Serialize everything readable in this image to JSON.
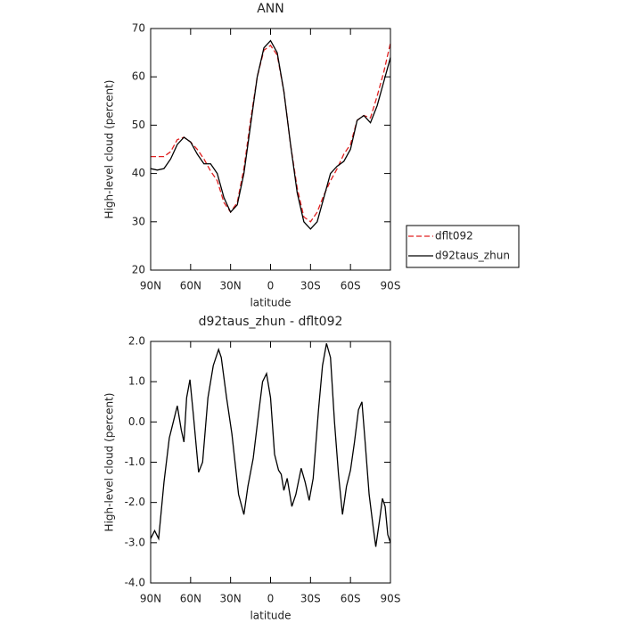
{
  "chart_data": [
    {
      "type": "line",
      "title": "ANN",
      "xlabel": "latitude",
      "ylabel": "High-level cloud (percent)",
      "x": [
        90,
        85,
        80,
        75,
        70,
        65,
        60,
        55,
        50,
        45,
        40,
        35,
        30,
        25,
        20,
        15,
        10,
        5,
        0,
        -5,
        -10,
        -15,
        -20,
        -25,
        -30,
        -35,
        -40,
        -45,
        -50,
        -55,
        -60,
        -65,
        -70,
        -75,
        -80,
        -85,
        -90
      ],
      "series": [
        {
          "name": "dflt092",
          "color": "#e02020",
          "dash": true,
          "values": [
            43.5,
            43.5,
            43.5,
            44.5,
            47,
            47.5,
            46.5,
            45,
            43,
            40.5,
            38.5,
            34,
            32,
            34,
            41,
            51,
            60,
            65.5,
            66.5,
            64.5,
            57,
            46,
            37,
            31,
            30,
            32,
            35.5,
            38.5,
            41,
            44,
            46,
            51,
            52,
            51.5,
            56,
            61,
            67
          ]
        },
        {
          "name": "d92taus_zhun",
          "color": "#000000",
          "dash": false,
          "values": [
            41,
            40.7,
            41,
            43,
            46,
            47.5,
            46.5,
            44,
            42,
            42,
            40,
            35,
            32,
            33.5,
            40,
            50,
            60,
            66,
            67.5,
            65,
            57,
            46,
            36,
            30,
            28.5,
            30,
            35,
            40,
            41.5,
            42.5,
            45,
            51,
            52,
            50.5,
            54,
            59,
            64
          ]
        }
      ],
      "xlim": [
        90,
        -90
      ],
      "xticks": [
        {
          "value": 90,
          "label": "90N"
        },
        {
          "value": 60,
          "label": "60N"
        },
        {
          "value": 30,
          "label": "30N"
        },
        0,
        {
          "value": -30,
          "label": "30S"
        },
        {
          "value": -60,
          "label": "60S"
        },
        {
          "value": -90,
          "label": "90S"
        }
      ],
      "ylim": [
        20,
        70
      ],
      "yticks": [
        20,
        30,
        40,
        50,
        60,
        70
      ],
      "legend": "right"
    },
    {
      "type": "line",
      "title": "d92taus_zhun - dflt092",
      "xlabel": "latitude",
      "ylabel": "High-level cloud (percent)",
      "x": [
        90,
        87,
        84,
        80,
        76,
        73,
        70,
        67,
        65,
        63,
        60.5,
        58,
        54,
        51,
        47,
        43,
        39,
        37,
        33,
        29,
        24,
        20,
        17,
        13,
        9,
        6,
        3,
        0,
        -3,
        -6,
        -8,
        -10,
        -12.5,
        -14,
        -16,
        -19,
        -23,
        -26,
        -29,
        -32,
        -36,
        -39,
        -42,
        -45,
        -48,
        -51,
        -54,
        -57,
        -60,
        -63,
        -66,
        -68.6,
        -71,
        -74,
        -77,
        -79,
        -82,
        -84,
        -86,
        -88,
        -90
      ],
      "series": [
        {
          "color": "#000000",
          "values": [
            -2.9,
            -2.7,
            -2.9,
            -1.5,
            -0.4,
            0.0,
            0.4,
            -0.2,
            -0.5,
            0.6,
            1.05,
            0.2,
            -1.25,
            -1.0,
            0.6,
            1.4,
            1.8,
            1.6,
            0.6,
            -0.3,
            -1.8,
            -2.3,
            -1.6,
            -0.9,
            0.2,
            1.0,
            1.2,
            0.6,
            -0.8,
            -1.2,
            -1.3,
            -1.7,
            -1.4,
            -1.7,
            -2.1,
            -1.8,
            -1.15,
            -1.5,
            -1.95,
            -1.4,
            0.3,
            1.4,
            1.95,
            1.6,
            0.0,
            -1.3,
            -2.3,
            -1.6,
            -1.2,
            -0.5,
            0.3,
            0.5,
            -0.5,
            -1.8,
            -2.6,
            -3.1,
            -2.4,
            -1.9,
            -2.1,
            -2.8,
            -3.0
          ]
        }
      ],
      "xlim": [
        90,
        -90
      ],
      "xticks": [
        {
          "value": 90,
          "label": "90N"
        },
        {
          "value": 60,
          "label": "60N"
        },
        {
          "value": 30,
          "label": "30N"
        },
        0,
        {
          "value": -30,
          "label": "30S"
        },
        {
          "value": -60,
          "label": "60S"
        },
        {
          "value": -90,
          "label": "90S"
        }
      ],
      "ylim": [
        -4,
        2
      ],
      "yticks": [
        {
          "value": -4,
          "label": "-4.0"
        },
        {
          "value": -3,
          "label": "-3.0"
        },
        {
          "value": -2,
          "label": "-2.0"
        },
        {
          "value": -1,
          "label": "-1.0"
        },
        {
          "value": 0,
          "label": "0.0"
        },
        {
          "value": 1,
          "label": "1.0"
        },
        {
          "value": 2,
          "label": "2.0"
        }
      ]
    }
  ]
}
